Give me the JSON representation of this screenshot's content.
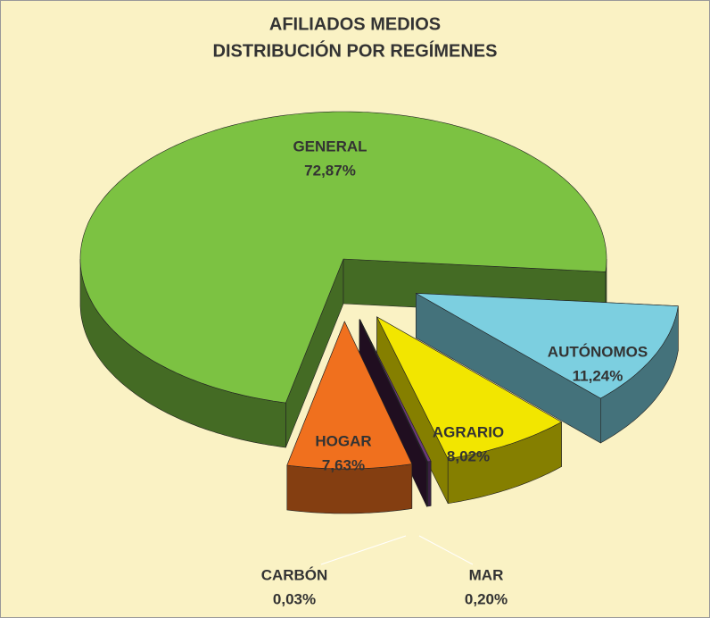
{
  "chart_data": {
    "type": "pie",
    "title": "AFILIADOS MEDIOS",
    "subtitle": "DISTRIBUCIÓN POR REGÍMENES",
    "categories": [
      "AUTÓNOMOS",
      "AGRARIO",
      "MAR",
      "CARBÓN",
      "HOGAR",
      "GENERAL"
    ],
    "values": [
      11.24,
      8.02,
      0.2,
      0.03,
      7.63,
      72.87
    ],
    "value_labels": [
      "11,24%",
      "8,02%",
      "0,20%",
      "0,03%",
      "7,63%",
      "72,87%"
    ],
    "colors": [
      "#7ccfe0",
      "#f2e600",
      "#6a3a7a",
      "#3a1a3a",
      "#f0701e",
      "#7cc242"
    ]
  }
}
